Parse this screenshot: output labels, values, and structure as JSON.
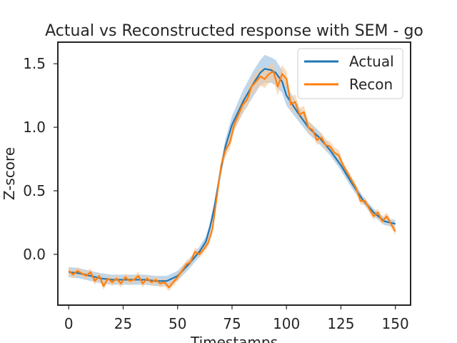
{
  "chart_data": {
    "type": "line",
    "title": "Actual vs Reconstructed response with SEM - go",
    "xlabel": "Timestamps",
    "ylabel": "Z-score",
    "xlim": [
      -5,
      157
    ],
    "ylim": [
      -0.4,
      1.67
    ],
    "xticks": [
      0,
      25,
      50,
      75,
      100,
      125,
      150
    ],
    "yticks": [
      0.0,
      0.5,
      1.0,
      1.5
    ],
    "xtick_labels": [
      "0",
      "25",
      "50",
      "75",
      "100",
      "125",
      "150"
    ],
    "ytick_labels": [
      "0.0",
      "0.5",
      "1.0",
      "1.5"
    ],
    "grid": false,
    "legend": {
      "position": "top-right",
      "entries": [
        "Actual",
        "Recon"
      ]
    },
    "series": [
      {
        "name": "Actual",
        "color": "#1f77b4",
        "band_color": "#a9c9e6",
        "x": [
          0,
          5,
          10,
          15,
          20,
          25,
          30,
          35,
          40,
          45,
          50,
          55,
          60,
          63,
          65,
          67,
          70,
          72,
          75,
          80,
          85,
          88,
          90,
          93,
          95,
          98,
          100,
          105,
          110,
          115,
          120,
          125,
          130,
          135,
          140,
          145,
          150
        ],
        "y": [
          -0.14,
          -0.15,
          -0.17,
          -0.19,
          -0.2,
          -0.2,
          -0.2,
          -0.2,
          -0.21,
          -0.21,
          -0.17,
          -0.08,
          0.02,
          0.1,
          0.22,
          0.38,
          0.68,
          0.85,
          1.02,
          1.2,
          1.35,
          1.43,
          1.46,
          1.45,
          1.43,
          1.36,
          1.25,
          1.12,
          1.0,
          0.92,
          0.82,
          0.7,
          0.56,
          0.43,
          0.33,
          0.26,
          0.24
        ],
        "sem": [
          0.04,
          0.04,
          0.04,
          0.04,
          0.04,
          0.04,
          0.04,
          0.04,
          0.04,
          0.04,
          0.04,
          0.04,
          0.04,
          0.04,
          0.04,
          0.05,
          0.05,
          0.06,
          0.07,
          0.09,
          0.1,
          0.1,
          0.11,
          0.1,
          0.1,
          0.09,
          0.08,
          0.06,
          0.05,
          0.05,
          0.04,
          0.04,
          0.04,
          0.03,
          0.03,
          0.03,
          0.03
        ]
      },
      {
        "name": "Recon",
        "color": "#ff7f0e",
        "band_color": "#f5c9a0",
        "x": [
          0,
          2,
          4,
          6,
          8,
          10,
          12,
          14,
          16,
          18,
          20,
          22,
          24,
          26,
          28,
          30,
          32,
          34,
          36,
          38,
          40,
          42,
          44,
          46,
          48,
          50,
          52,
          54,
          56,
          58,
          60,
          62,
          64,
          66,
          68,
          70,
          72,
          74,
          76,
          78,
          80,
          82,
          84,
          86,
          88,
          90,
          92,
          94,
          96,
          98,
          100,
          102,
          104,
          106,
          108,
          110,
          112,
          114,
          116,
          118,
          120,
          122,
          124,
          126,
          128,
          130,
          132,
          134,
          136,
          138,
          140,
          142,
          144,
          146,
          148,
          150
        ],
        "y": [
          -0.13,
          -0.16,
          -0.13,
          -0.15,
          -0.17,
          -0.14,
          -0.21,
          -0.17,
          -0.25,
          -0.19,
          -0.22,
          -0.19,
          -0.23,
          -0.18,
          -0.21,
          -0.2,
          -0.17,
          -0.23,
          -0.19,
          -0.22,
          -0.2,
          -0.23,
          -0.22,
          -0.26,
          -0.22,
          -0.18,
          -0.13,
          -0.08,
          -0.06,
          0.02,
          0.0,
          0.04,
          0.09,
          0.2,
          0.45,
          0.7,
          0.82,
          0.88,
          1.02,
          1.1,
          1.18,
          1.22,
          1.32,
          1.36,
          1.4,
          1.38,
          1.42,
          1.44,
          1.32,
          1.42,
          1.38,
          1.18,
          1.2,
          1.1,
          1.12,
          1.0,
          0.98,
          0.9,
          0.92,
          0.86,
          0.85,
          0.8,
          0.78,
          0.7,
          0.64,
          0.58,
          0.52,
          0.42,
          0.42,
          0.36,
          0.3,
          0.33,
          0.26,
          0.3,
          0.24,
          0.18
        ],
        "sem": [
          0.03,
          0.03,
          0.03,
          0.03,
          0.03,
          0.03,
          0.03,
          0.03,
          0.03,
          0.03,
          0.03,
          0.03,
          0.03,
          0.03,
          0.03,
          0.03,
          0.03,
          0.03,
          0.03,
          0.03,
          0.03,
          0.03,
          0.03,
          0.03,
          0.03,
          0.03,
          0.03,
          0.03,
          0.03,
          0.03,
          0.03,
          0.03,
          0.03,
          0.04,
          0.04,
          0.04,
          0.05,
          0.05,
          0.05,
          0.06,
          0.06,
          0.06,
          0.07,
          0.07,
          0.07,
          0.07,
          0.07,
          0.07,
          0.07,
          0.07,
          0.06,
          0.06,
          0.06,
          0.05,
          0.05,
          0.05,
          0.04,
          0.04,
          0.04,
          0.04,
          0.04,
          0.04,
          0.04,
          0.03,
          0.03,
          0.03,
          0.03,
          0.03,
          0.03,
          0.03,
          0.03,
          0.03,
          0.03,
          0.03,
          0.03,
          0.03
        ]
      }
    ]
  }
}
